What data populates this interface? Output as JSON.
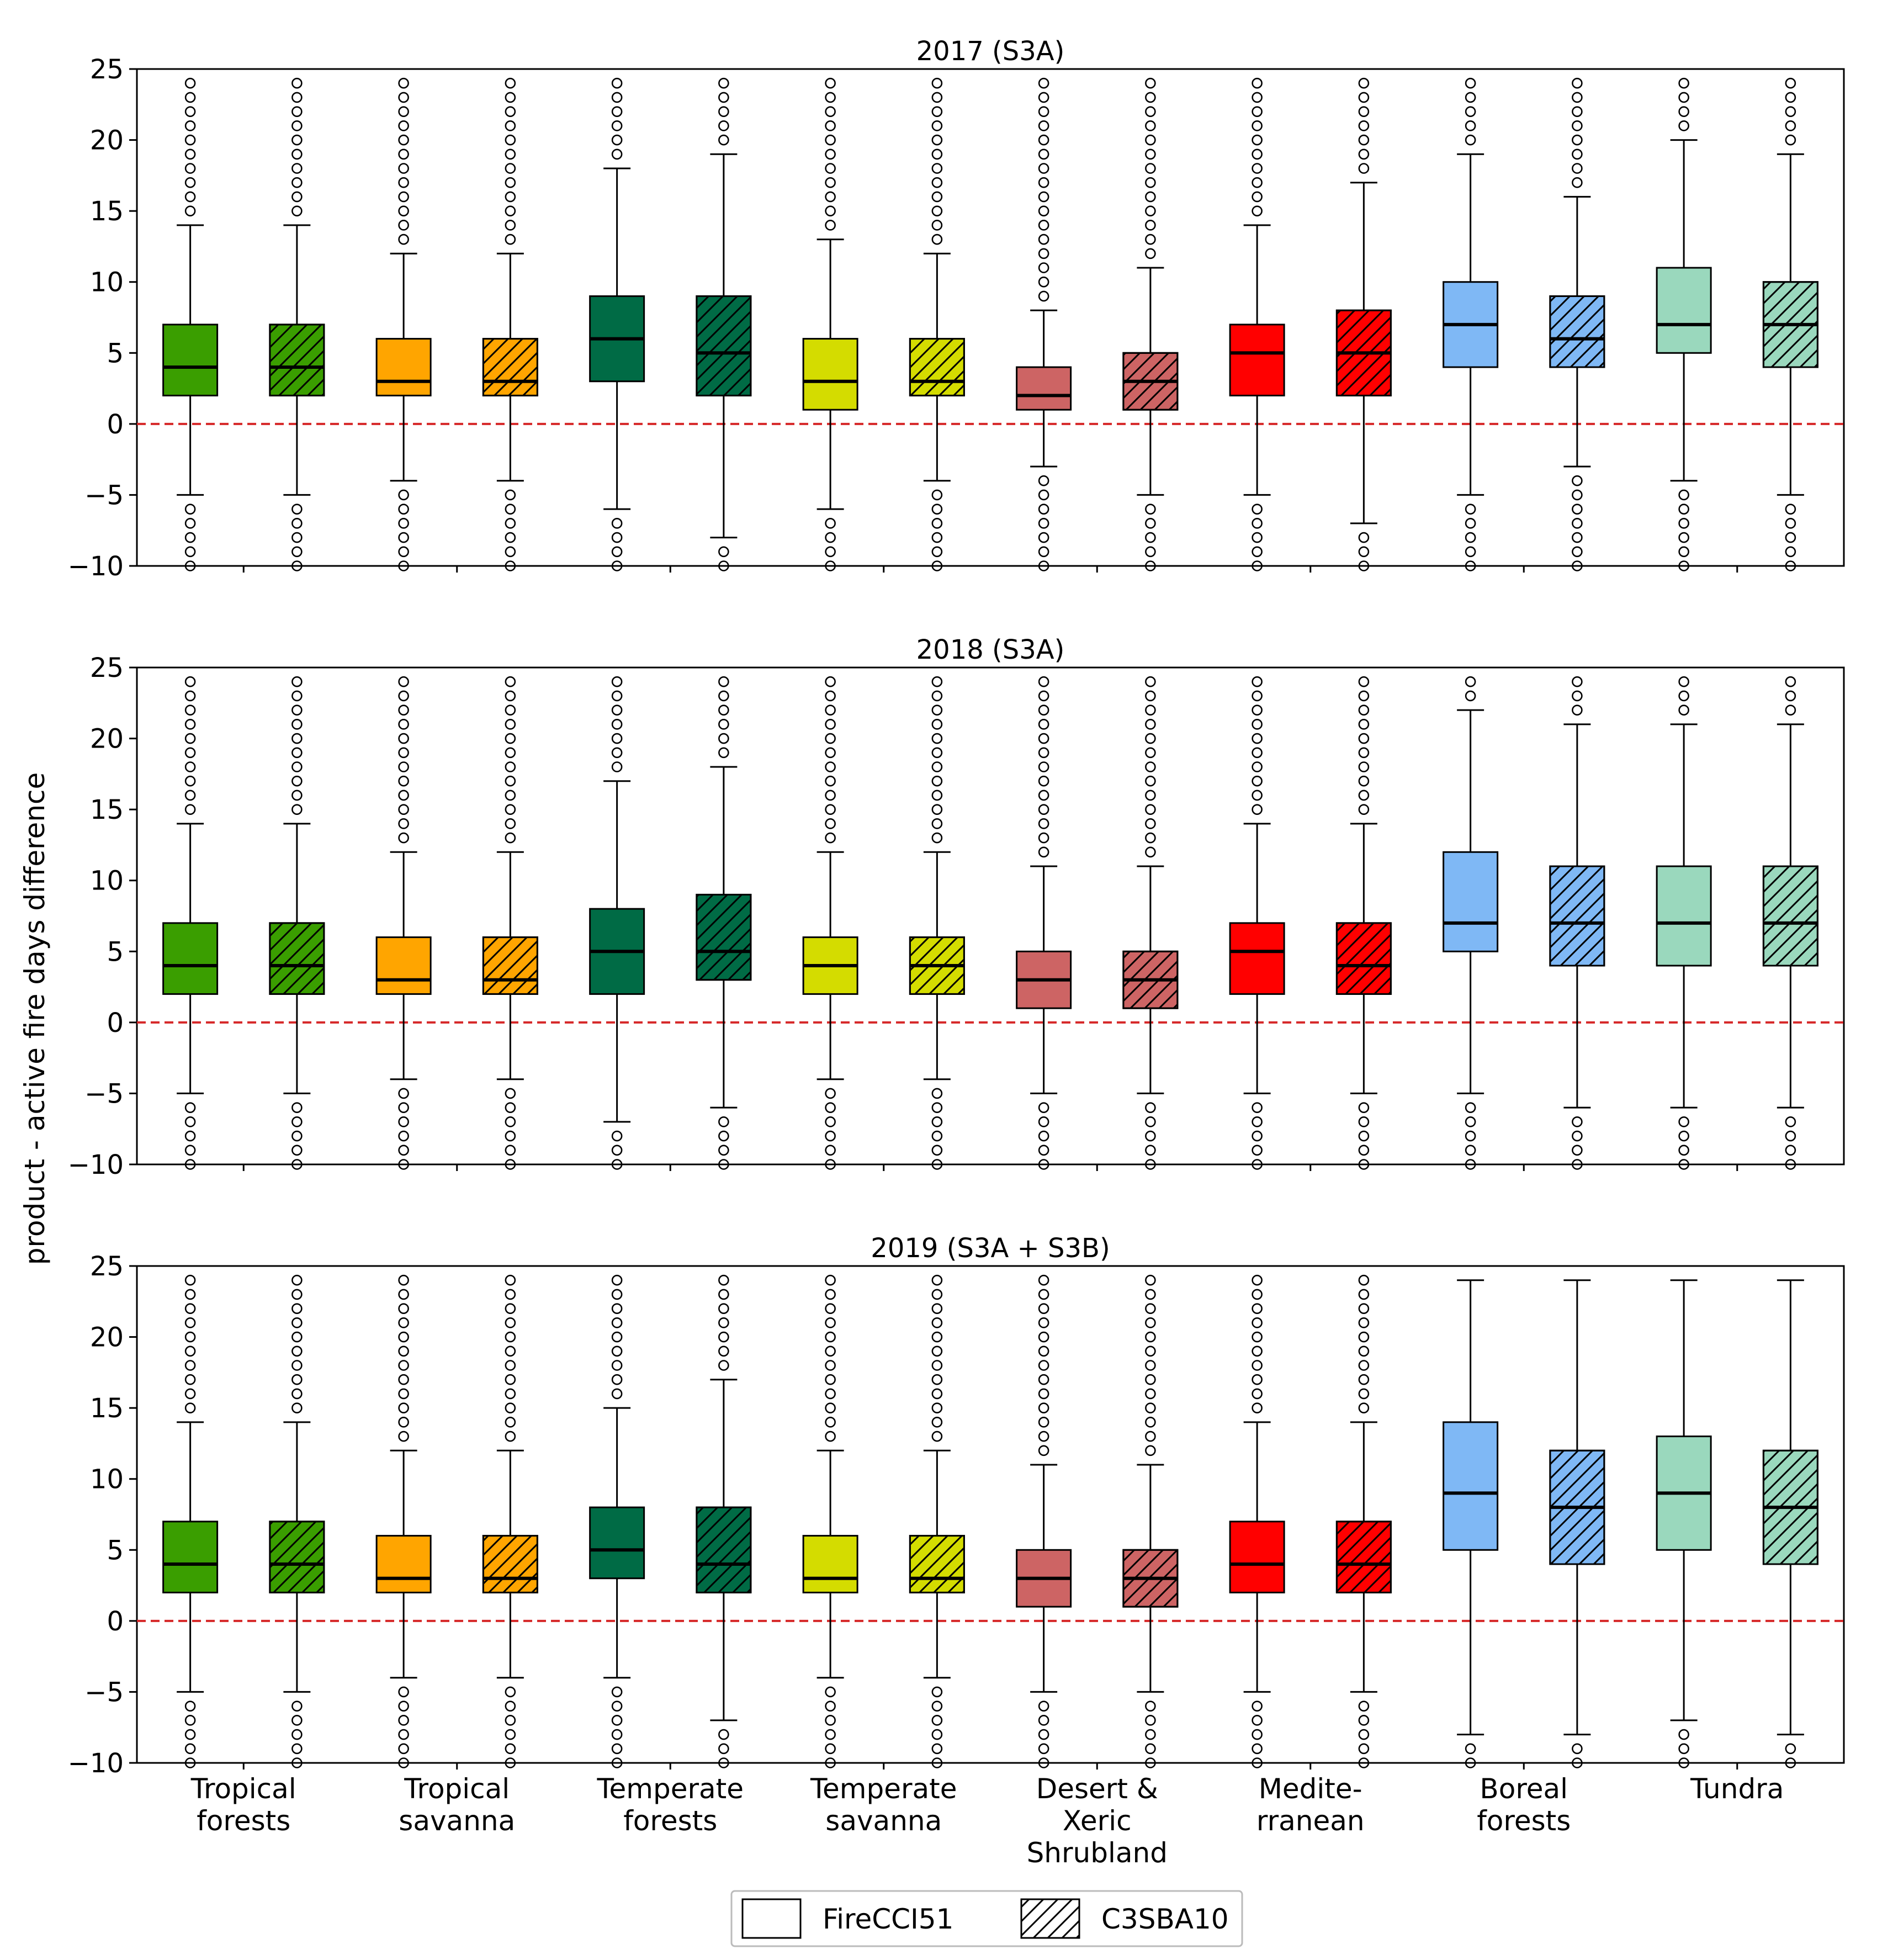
{
  "chart_data": {
    "type": "boxplot",
    "ylabel": "product - active fire days difference",
    "ylim": [
      -10,
      25
    ],
    "yticks": [
      25,
      20,
      15,
      10,
      5,
      0,
      -5,
      -10
    ],
    "ytick_labels": [
      "25",
      "20",
      "15",
      "10",
      "5",
      "0",
      "−5",
      "−10"
    ],
    "reference_line": {
      "y": 0,
      "color": "#d62728",
      "style": "dashed"
    },
    "categories": [
      {
        "lines": [
          "Tropical",
          "forests"
        ],
        "color": "#3a9e00"
      },
      {
        "lines": [
          "Tropical",
          "savanna"
        ],
        "color": "#ffa500"
      },
      {
        "lines": [
          "Temperate",
          "forests"
        ],
        "color": "#006b45"
      },
      {
        "lines": [
          "Temperate",
          "savanna"
        ],
        "color": "#d4dc00"
      },
      {
        "lines": [
          "Desert &",
          "Xeric",
          "Shrubland"
        ],
        "color": "#cd6464"
      },
      {
        "lines": [
          "Medite-",
          "rranean"
        ],
        "color": "#ff0000"
      },
      {
        "lines": [
          "Boreal",
          "forests"
        ],
        "color": "#7fb8f5"
      },
      {
        "lines": [
          "Tundra"
        ],
        "color": "#9ad8bd"
      }
    ],
    "legend": {
      "placement": "bottom-center",
      "items": [
        {
          "label": "FireCCI51",
          "hatch": false
        },
        {
          "label": "C3SBA10",
          "hatch": true
        }
      ]
    },
    "panels": [
      {
        "title": "2017 (S3A)",
        "boxes": [
          {
            "q1": 2,
            "med": 4,
            "q3": 7,
            "wlo": -5,
            "whi": 14,
            "ohi": 15,
            "olo": -6
          },
          {
            "q1": 2,
            "med": 4,
            "q3": 7,
            "wlo": -5,
            "whi": 14,
            "ohi": 15,
            "olo": -6
          },
          {
            "q1": 2,
            "med": 3,
            "q3": 6,
            "wlo": -4,
            "whi": 12,
            "ohi": 13,
            "olo": -5
          },
          {
            "q1": 2,
            "med": 3,
            "q3": 6,
            "wlo": -4,
            "whi": 12,
            "ohi": 13,
            "olo": -5
          },
          {
            "q1": 3,
            "med": 6,
            "q3": 9,
            "wlo": -6,
            "whi": 18,
            "ohi": 19,
            "olo": -7
          },
          {
            "q1": 2,
            "med": 5,
            "q3": 9,
            "wlo": -8,
            "whi": 19,
            "ohi": 20,
            "olo": -9
          },
          {
            "q1": 1,
            "med": 3,
            "q3": 6,
            "wlo": -6,
            "whi": 13,
            "ohi": 14,
            "olo": -7
          },
          {
            "q1": 2,
            "med": 3,
            "q3": 6,
            "wlo": -4,
            "whi": 12,
            "ohi": 13,
            "olo": -5
          },
          {
            "q1": 1,
            "med": 2,
            "q3": 4,
            "wlo": -3,
            "whi": 8,
            "ohi": 9,
            "olo": -4
          },
          {
            "q1": 1,
            "med": 3,
            "q3": 5,
            "wlo": -5,
            "whi": 11,
            "ohi": 12,
            "olo": -6
          },
          {
            "q1": 2,
            "med": 5,
            "q3": 7,
            "wlo": -5,
            "whi": 14,
            "ohi": 15,
            "olo": -6
          },
          {
            "q1": 2,
            "med": 5,
            "q3": 8,
            "wlo": -7,
            "whi": 17,
            "ohi": 18,
            "olo": -8
          },
          {
            "q1": 4,
            "med": 7,
            "q3": 10,
            "wlo": -5,
            "whi": 19,
            "ohi": 20,
            "olo": -6
          },
          {
            "q1": 4,
            "med": 6,
            "q3": 9,
            "wlo": -3,
            "whi": 16,
            "ohi": 17,
            "olo": -4
          },
          {
            "q1": 5,
            "med": 7,
            "q3": 11,
            "wlo": -4,
            "whi": 20,
            "ohi": 21,
            "olo": -5
          },
          {
            "q1": 4,
            "med": 7,
            "q3": 10,
            "wlo": -5,
            "whi": 19,
            "ohi": 20,
            "olo": -6
          }
        ]
      },
      {
        "title": "2018 (S3A)",
        "boxes": [
          {
            "q1": 2,
            "med": 4,
            "q3": 7,
            "wlo": -5,
            "whi": 14,
            "ohi": 15,
            "olo": -6
          },
          {
            "q1": 2,
            "med": 4,
            "q3": 7,
            "wlo": -5,
            "whi": 14,
            "ohi": 15,
            "olo": -6
          },
          {
            "q1": 2,
            "med": 3,
            "q3": 6,
            "wlo": -4,
            "whi": 12,
            "ohi": 13,
            "olo": -5
          },
          {
            "q1": 2,
            "med": 3,
            "q3": 6,
            "wlo": -4,
            "whi": 12,
            "ohi": 13,
            "olo": -5
          },
          {
            "q1": 2,
            "med": 5,
            "q3": 8,
            "wlo": -7,
            "whi": 17,
            "ohi": 18,
            "olo": -8
          },
          {
            "q1": 3,
            "med": 5,
            "q3": 9,
            "wlo": -6,
            "whi": 18,
            "ohi": 19,
            "olo": -7
          },
          {
            "q1": 2,
            "med": 4,
            "q3": 6,
            "wlo": -4,
            "whi": 12,
            "ohi": 13,
            "olo": -5
          },
          {
            "q1": 2,
            "med": 4,
            "q3": 6,
            "wlo": -4,
            "whi": 12,
            "ohi": 13,
            "olo": -5
          },
          {
            "q1": 1,
            "med": 3,
            "q3": 5,
            "wlo": -5,
            "whi": 11,
            "ohi": 12,
            "olo": -6
          },
          {
            "q1": 1,
            "med": 3,
            "q3": 5,
            "wlo": -5,
            "whi": 11,
            "ohi": 12,
            "olo": -6
          },
          {
            "q1": 2,
            "med": 5,
            "q3": 7,
            "wlo": -5,
            "whi": 14,
            "ohi": 15,
            "olo": -6
          },
          {
            "q1": 2,
            "med": 4,
            "q3": 7,
            "wlo": -5,
            "whi": 14,
            "ohi": 15,
            "olo": -6
          },
          {
            "q1": 5,
            "med": 7,
            "q3": 12,
            "wlo": -5,
            "whi": 22,
            "ohi": 23,
            "olo": -6
          },
          {
            "q1": 4,
            "med": 7,
            "q3": 11,
            "wlo": -6,
            "whi": 21,
            "ohi": 22,
            "olo": -7
          },
          {
            "q1": 4,
            "med": 7,
            "q3": 11,
            "wlo": -6,
            "whi": 21,
            "ohi": 22,
            "olo": -7
          },
          {
            "q1": 4,
            "med": 7,
            "q3": 11,
            "wlo": -6,
            "whi": 21,
            "ohi": 22,
            "olo": -7
          }
        ]
      },
      {
        "title": "2019 (S3A + S3B)",
        "boxes": [
          {
            "q1": 2,
            "med": 4,
            "q3": 7,
            "wlo": -5,
            "whi": 14,
            "ohi": 15,
            "olo": -6
          },
          {
            "q1": 2,
            "med": 4,
            "q3": 7,
            "wlo": -5,
            "whi": 14,
            "ohi": 15,
            "olo": -6
          },
          {
            "q1": 2,
            "med": 3,
            "q3": 6,
            "wlo": -4,
            "whi": 12,
            "ohi": 13,
            "olo": -5
          },
          {
            "q1": 2,
            "med": 3,
            "q3": 6,
            "wlo": -4,
            "whi": 12,
            "ohi": 13,
            "olo": -5
          },
          {
            "q1": 3,
            "med": 5,
            "q3": 8,
            "wlo": -4,
            "whi": 15,
            "ohi": 16,
            "olo": -5
          },
          {
            "q1": 2,
            "med": 4,
            "q3": 8,
            "wlo": -7,
            "whi": 17,
            "ohi": 18,
            "olo": -8
          },
          {
            "q1": 2,
            "med": 3,
            "q3": 6,
            "wlo": -4,
            "whi": 12,
            "ohi": 13,
            "olo": -5
          },
          {
            "q1": 2,
            "med": 3,
            "q3": 6,
            "wlo": -4,
            "whi": 12,
            "ohi": 13,
            "olo": -5
          },
          {
            "q1": 1,
            "med": 3,
            "q3": 5,
            "wlo": -5,
            "whi": 11,
            "ohi": 12,
            "olo": -6
          },
          {
            "q1": 1,
            "med": 3,
            "q3": 5,
            "wlo": -5,
            "whi": 11,
            "ohi": 12,
            "olo": -6
          },
          {
            "q1": 2,
            "med": 4,
            "q3": 7,
            "wlo": -5,
            "whi": 14,
            "ohi": 15,
            "olo": -6
          },
          {
            "q1": 2,
            "med": 4,
            "q3": 7,
            "wlo": -5,
            "whi": 14,
            "ohi": 15,
            "olo": -6
          },
          {
            "q1": 5,
            "med": 9,
            "q3": 14,
            "wlo": -8,
            "whi": 24,
            "ohi": null,
            "olo": -9
          },
          {
            "q1": 4,
            "med": 8,
            "q3": 12,
            "wlo": -8,
            "whi": 24,
            "ohi": null,
            "olo": -9
          },
          {
            "q1": 5,
            "med": 9,
            "q3": 13,
            "wlo": -7,
            "whi": 24,
            "ohi": null,
            "olo": -8
          },
          {
            "q1": 4,
            "med": 8,
            "q3": 12,
            "wlo": -8,
            "whi": 24,
            "ohi": null,
            "olo": -9
          }
        ]
      }
    ]
  }
}
